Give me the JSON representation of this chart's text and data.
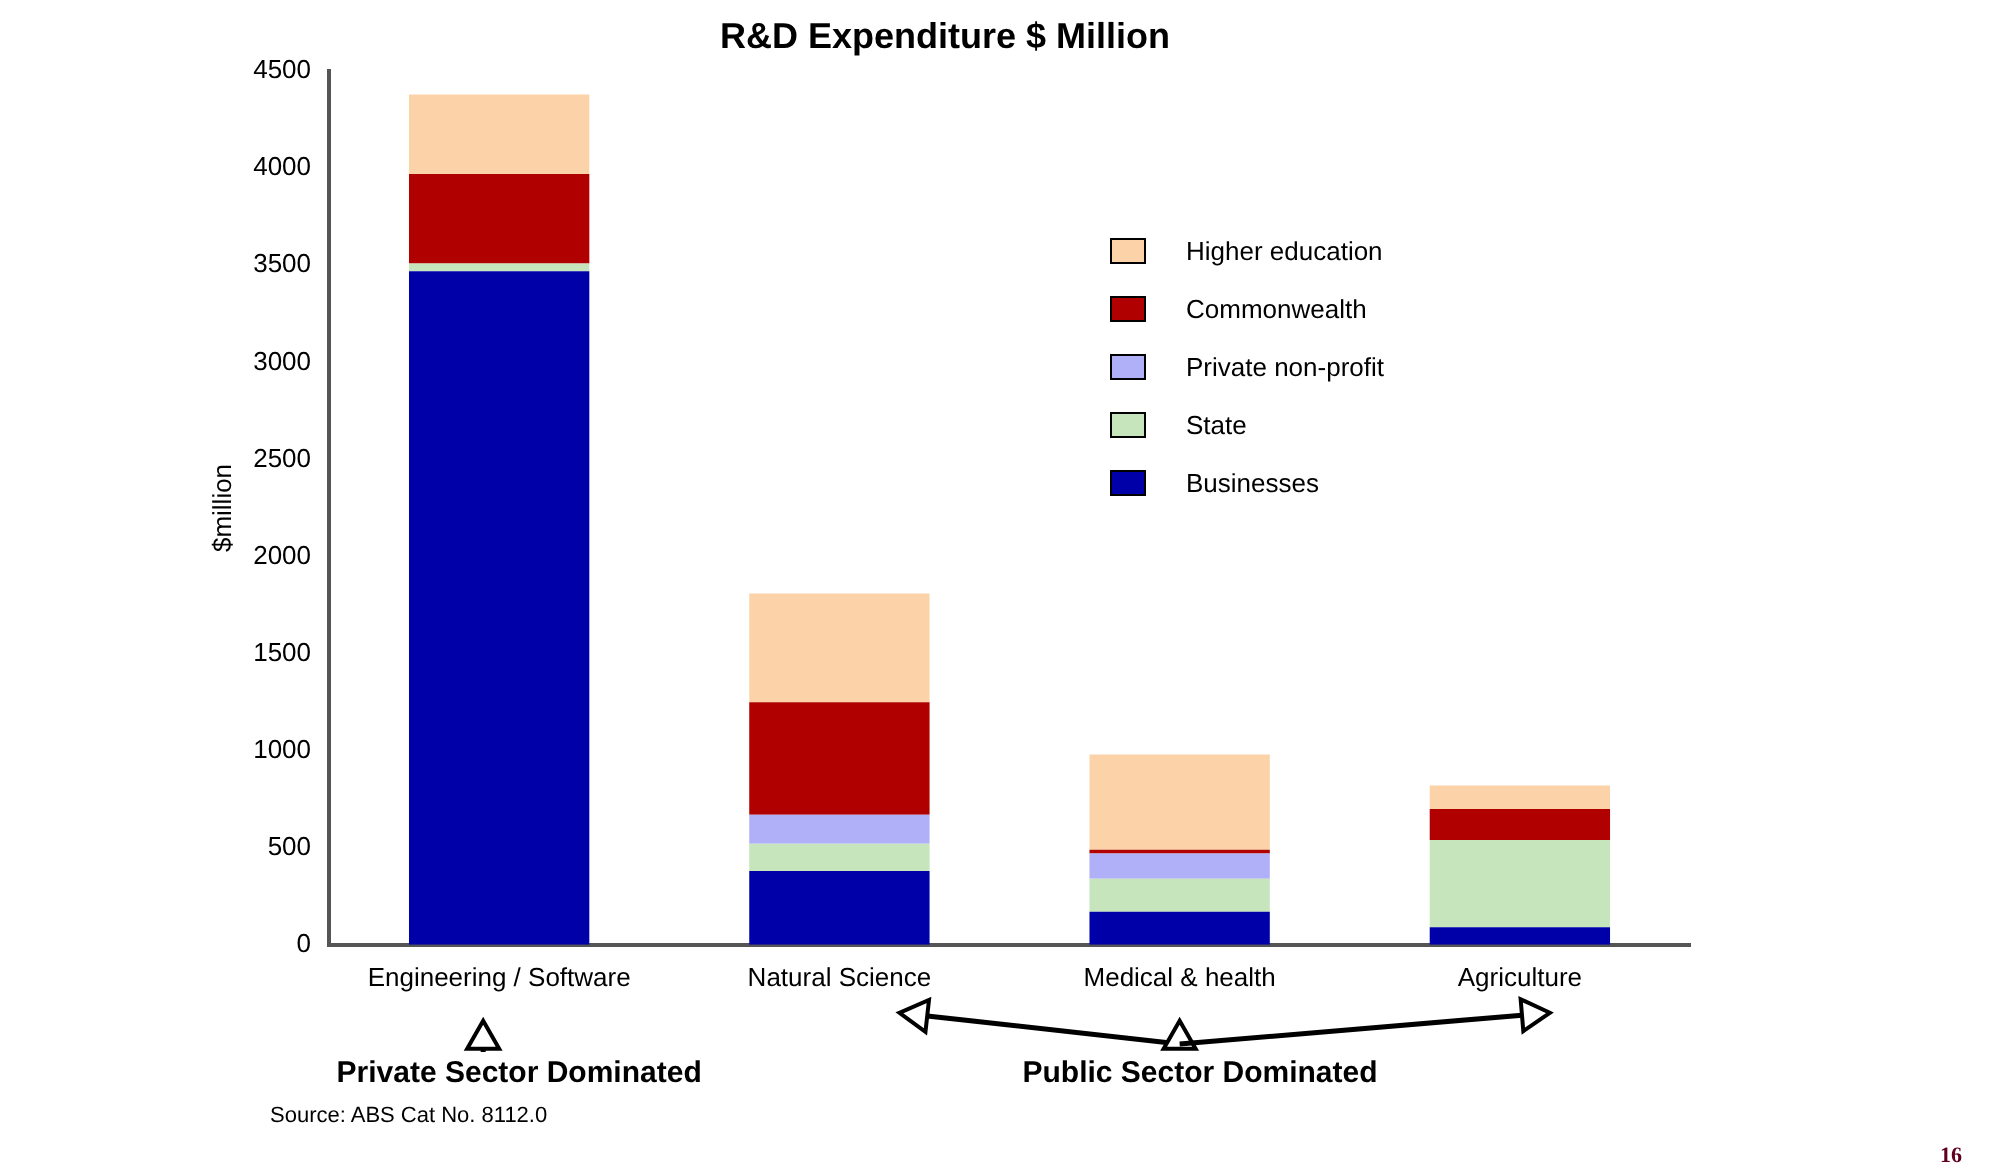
{
  "chart_data": {
    "type": "bar",
    "title": "R&D Expenditure $ Million",
    "ylabel": "$million",
    "categories": [
      "Engineering / Software",
      "Natural Science",
      "Medical & health",
      "Agriculture"
    ],
    "stacked": true,
    "series": [
      {
        "name": "Businesses",
        "color": "#0000a8",
        "values": [
          3470,
          380,
          170,
          90
        ]
      },
      {
        "name": "State",
        "color": "#c6e5bd",
        "values": [
          40,
          140,
          170,
          450
        ]
      },
      {
        "name": "Private non-profit",
        "color": "#b0b0f8",
        "values": [
          0,
          150,
          130,
          0
        ]
      },
      {
        "name": "Commonwealth",
        "color": "#b00000",
        "values": [
          460,
          580,
          20,
          160
        ]
      },
      {
        "name": "Higher education",
        "color": "#fcd3a8",
        "values": [
          410,
          560,
          490,
          120
        ]
      }
    ],
    "ylim": [
      0,
      4500
    ],
    "yticks": [
      0,
      500,
      1000,
      1500,
      2000,
      2500,
      3000,
      3500,
      4000,
      4500
    ],
    "grid": false,
    "legend": "top right",
    "annotations": [
      "Private Sector Dominated",
      "Public Sector Dominated",
      "Source: ABS Cat No. 8112.0",
      "16"
    ]
  }
}
